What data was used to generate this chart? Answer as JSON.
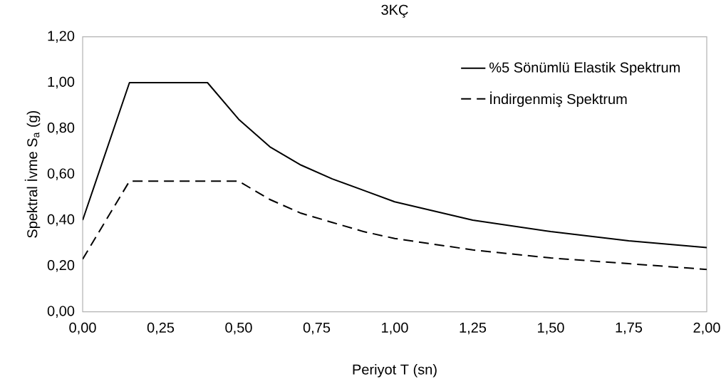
{
  "chart_data": {
    "type": "line",
    "title": "3KÇ",
    "xlabel": "Periyot T (sn)",
    "ylabel": "Spektral İvme S$_{a}$ (g)",
    "x": [
      0,
      0.15,
      0.4,
      0.5,
      0.6,
      0.7,
      0.8,
      0.9,
      1.0,
      1.25,
      1.5,
      1.75,
      2.0
    ],
    "series": [
      {
        "name": "%5 Sönümlü Elastik Spektrum",
        "color": "#000000",
        "line_style": "solid",
        "values": [
          0.4,
          1.0,
          1.0,
          0.84,
          0.72,
          0.64,
          0.58,
          0.53,
          0.48,
          0.4,
          0.35,
          0.31,
          0.28
        ]
      },
      {
        "name": "İndirgenmiş Spektrum",
        "color": "#000000",
        "line_style": "dashed",
        "x": [
          0,
          0.15,
          0.5,
          0.6,
          0.7,
          0.8,
          0.9,
          1.0,
          1.25,
          1.5,
          1.75,
          2.0
        ],
        "values": [
          0.23,
          0.57,
          0.57,
          0.49,
          0.43,
          0.39,
          0.35,
          0.32,
          0.27,
          0.235,
          0.21,
          0.185
        ]
      }
    ],
    "xlim": [
      0,
      2.0
    ],
    "ylim": [
      0,
      1.2
    ],
    "xticks": [
      {
        "value": 0,
        "label": "0,00"
      },
      {
        "value": 0.25,
        "label": "0,25"
      },
      {
        "value": 0.5,
        "label": "0,50"
      },
      {
        "value": 0.75,
        "label": "0,75"
      },
      {
        "value": 1.0,
        "label": "1,00"
      },
      {
        "value": 1.25,
        "label": "1,25"
      },
      {
        "value": 1.5,
        "label": "1,50"
      },
      {
        "value": 1.75,
        "label": "1,75"
      },
      {
        "value": 2.0,
        "label": "2,00"
      }
    ],
    "yticks": [
      {
        "value": 0,
        "label": "0,00"
      },
      {
        "value": 0.2,
        "label": "0,20"
      },
      {
        "value": 0.4,
        "label": "0,40"
      },
      {
        "value": 0.6,
        "label": "0,60"
      },
      {
        "value": 0.8,
        "label": "0,80"
      },
      {
        "value": 1.0,
        "label": "1,00"
      },
      {
        "value": 1.2,
        "label": "1,20"
      }
    ],
    "grid": false,
    "legend": "top right",
    "marker": "none"
  }
}
